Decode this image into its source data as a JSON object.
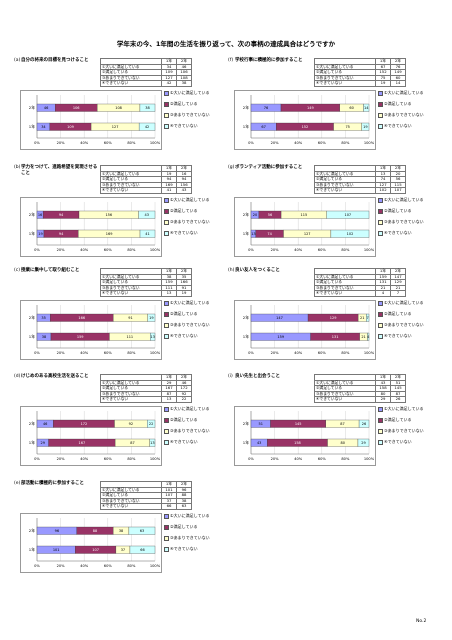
{
  "page": {
    "title": "学年末の今、1年間の生活を振り返って、次の事柄の達成具合はどうですか",
    "page_number": "No.2"
  },
  "table_header": {
    "y1": "1年",
    "y2": "2年"
  },
  "legend": [
    "①大いに満足している",
    "②満足している",
    "③あまりできていない",
    "④できていない"
  ],
  "series_colors": [
    "#9999ff",
    "#993366",
    "#ffffcc",
    "#ccffff"
  ],
  "axis_ticks": [
    "0%",
    "20%",
    "40%",
    "60%",
    "80%",
    "100%"
  ],
  "chart_data": [
    {
      "type": "bar",
      "label": "(a)",
      "title": "自分の将来の目標を見つけること",
      "rows": [
        {
          "name": "①大いに満足している",
          "y1": 34,
          "y2": 46
        },
        {
          "name": "②満足している",
          "y1": 109,
          "y2": 106
        },
        {
          "name": "③あまりできていない",
          "y1": 127,
          "y2": 108
        },
        {
          "name": "④できていない",
          "y1": 42,
          "y2": 38
        }
      ],
      "categories": [
        "2年",
        "1年"
      ],
      "series": [
        {
          "name": "①大いに満足している",
          "values": [
            46,
            34
          ]
        },
        {
          "name": "②満足している",
          "values": [
            106,
            109
          ]
        },
        {
          "name": "③あまりできていない",
          "values": [
            108,
            127
          ]
        },
        {
          "name": "④できていない",
          "values": [
            38,
            42
          ]
        }
      ]
    },
    {
      "type": "bar",
      "label": "(f)",
      "title": "学校行事に積極的に参加すること",
      "rows": [
        {
          "name": "①大いに満足している",
          "y1": 67,
          "y2": 76
        },
        {
          "name": "②満足している",
          "y1": 152,
          "y2": 149
        },
        {
          "name": "③あまりできていない",
          "y1": 75,
          "y2": 60
        },
        {
          "name": "④できていない",
          "y1": 19,
          "y2": 14
        }
      ],
      "categories": [
        "2年",
        "1年"
      ],
      "series": [
        {
          "name": "①大いに満足している",
          "values": [
            76,
            67
          ]
        },
        {
          "name": "②満足している",
          "values": [
            149,
            152
          ]
        },
        {
          "name": "③あまりできていない",
          "values": [
            60,
            75
          ]
        },
        {
          "name": "④できていない",
          "values": [
            14,
            19
          ]
        }
      ]
    },
    {
      "type": "bar",
      "label": "(b)",
      "title": "学力をつけて、進路希望を実現させること",
      "rows": [
        {
          "name": "①大いに満足している",
          "y1": 19,
          "y2": 16
        },
        {
          "name": "②満足している",
          "y1": 94,
          "y2": 94
        },
        {
          "name": "③あまりできていない",
          "y1": 169,
          "y2": 156
        },
        {
          "name": "④できていない",
          "y1": 41,
          "y2": 43
        }
      ],
      "categories": [
        "2年",
        "1年"
      ],
      "series": [
        {
          "name": "①大いに満足している",
          "values": [
            16,
            19
          ]
        },
        {
          "name": "②満足している",
          "values": [
            94,
            94
          ]
        },
        {
          "name": "③あまりできていない",
          "values": [
            156,
            169
          ]
        },
        {
          "name": "④できていない",
          "values": [
            43,
            41
          ]
        }
      ]
    },
    {
      "type": "bar",
      "label": "(g)",
      "title": "ボランティア活動に参加すること",
      "rows": [
        {
          "name": "①大いに満足している",
          "y1": 13,
          "y2": 20
        },
        {
          "name": "②満足している",
          "y1": 74,
          "y2": 56
        },
        {
          "name": "③あまりできていない",
          "y1": 127,
          "y2": 115
        },
        {
          "name": "④できていない",
          "y1": 102,
          "y2": 107
        }
      ],
      "categories": [
        "2年",
        "1年"
      ],
      "series": [
        {
          "name": "①大いに満足している",
          "values": [
            20,
            13
          ]
        },
        {
          "name": "②満足している",
          "values": [
            56,
            74
          ]
        },
        {
          "name": "③あまりできていない",
          "values": [
            115,
            127
          ]
        },
        {
          "name": "④できていない",
          "values": [
            107,
            102
          ]
        }
      ]
    },
    {
      "type": "bar",
      "label": "(c)",
      "title": "授業に集中して取り組むこと",
      "rows": [
        {
          "name": "①大いに満足している",
          "y1": 38,
          "y2": 35
        },
        {
          "name": "②満足している",
          "y1": 159,
          "y2": 166
        },
        {
          "name": "③あまりできていない",
          "y1": 111,
          "y2": 91
        },
        {
          "name": "④できていない",
          "y1": 13,
          "y2": 19
        }
      ],
      "categories": [
        "2年",
        "1年"
      ],
      "series": [
        {
          "name": "①大いに満足している",
          "values": [
            35,
            38
          ]
        },
        {
          "name": "②満足している",
          "values": [
            166,
            159
          ]
        },
        {
          "name": "③あまりできていない",
          "values": [
            91,
            111
          ]
        },
        {
          "name": "④できていない",
          "values": [
            19,
            13
          ]
        }
      ]
    },
    {
      "type": "bar",
      "label": "(h)",
      "title": "良い友人をつくること",
      "rows": [
        {
          "name": "①大いに満足している",
          "y1": 159,
          "y2": 147
        },
        {
          "name": "②満足している",
          "y1": 131,
          "y2": 129
        },
        {
          "name": "③あまりできていない",
          "y1": 21,
          "y2": 21
        },
        {
          "name": "④できていない",
          "y1": 4,
          "y2": 7
        }
      ],
      "categories": [
        "2年",
        "1年"
      ],
      "series": [
        {
          "name": "①大いに満足している",
          "values": [
            147,
            159
          ]
        },
        {
          "name": "②満足している",
          "values": [
            129,
            131
          ]
        },
        {
          "name": "③あまりできていない",
          "values": [
            21,
            21
          ]
        },
        {
          "name": "④できていない",
          "values": [
            7,
            4
          ]
        }
      ]
    },
    {
      "type": "bar",
      "label": "(d)",
      "title": "けじめのある高校生活を送ること",
      "rows": [
        {
          "name": "①大いに満足している",
          "y1": 29,
          "y2": 46
        },
        {
          "name": "②満足している",
          "y1": 167,
          "y2": 172
        },
        {
          "name": "③あまりできていない",
          "y1": 87,
          "y2": 92
        },
        {
          "name": "④できていない",
          "y1": 13,
          "y2": 22
        }
      ],
      "categories": [
        "2年",
        "1年"
      ],
      "series": [
        {
          "name": "①大いに満足している",
          "values": [
            46,
            29
          ]
        },
        {
          "name": "②満足している",
          "values": [
            172,
            167
          ]
        },
        {
          "name": "③あまりできていない",
          "values": [
            92,
            87
          ]
        },
        {
          "name": "④できていない",
          "values": [
            22,
            13
          ]
        }
      ]
    },
    {
      "type": "bar",
      "label": "(i)",
      "title": "良い先生と出会うこと",
      "rows": [
        {
          "name": "①大いに満足している",
          "y1": 43,
          "y2": 51
        },
        {
          "name": "②満足している",
          "y1": 158,
          "y2": 145
        },
        {
          "name": "③あまりできていない",
          "y1": 80,
          "y2": 87
        },
        {
          "name": "④できていない",
          "y1": 29,
          "y2": 26
        }
      ],
      "categories": [
        "2年",
        "1年"
      ],
      "series": [
        {
          "name": "①大いに満足している",
          "values": [
            51,
            43
          ]
        },
        {
          "name": "②満足している",
          "values": [
            145,
            158
          ]
        },
        {
          "name": "③あまりできていない",
          "values": [
            87,
            80
          ]
        },
        {
          "name": "④できていない",
          "values": [
            26,
            29
          ]
        }
      ]
    },
    {
      "type": "bar",
      "label": "(e)",
      "title": "部活動に積極的に参加すること",
      "rows": [
        {
          "name": "①大いに満足している",
          "y1": 101,
          "y2": 96
        },
        {
          "name": "②満足している",
          "y1": 107,
          "y2": 88
        },
        {
          "name": "③あまりできていない",
          "y1": 37,
          "y2": 38
        },
        {
          "name": "④できていない",
          "y1": 66,
          "y2": 63
        }
      ],
      "categories": [
        "2年",
        "1年"
      ],
      "series": [
        {
          "name": "①大いに満足している",
          "values": [
            96,
            101
          ]
        },
        {
          "name": "②満足している",
          "values": [
            88,
            107
          ]
        },
        {
          "name": "③あまりできていない",
          "values": [
            38,
            37
          ]
        },
        {
          "name": "④できていない",
          "values": [
            63,
            66
          ]
        }
      ]
    }
  ]
}
